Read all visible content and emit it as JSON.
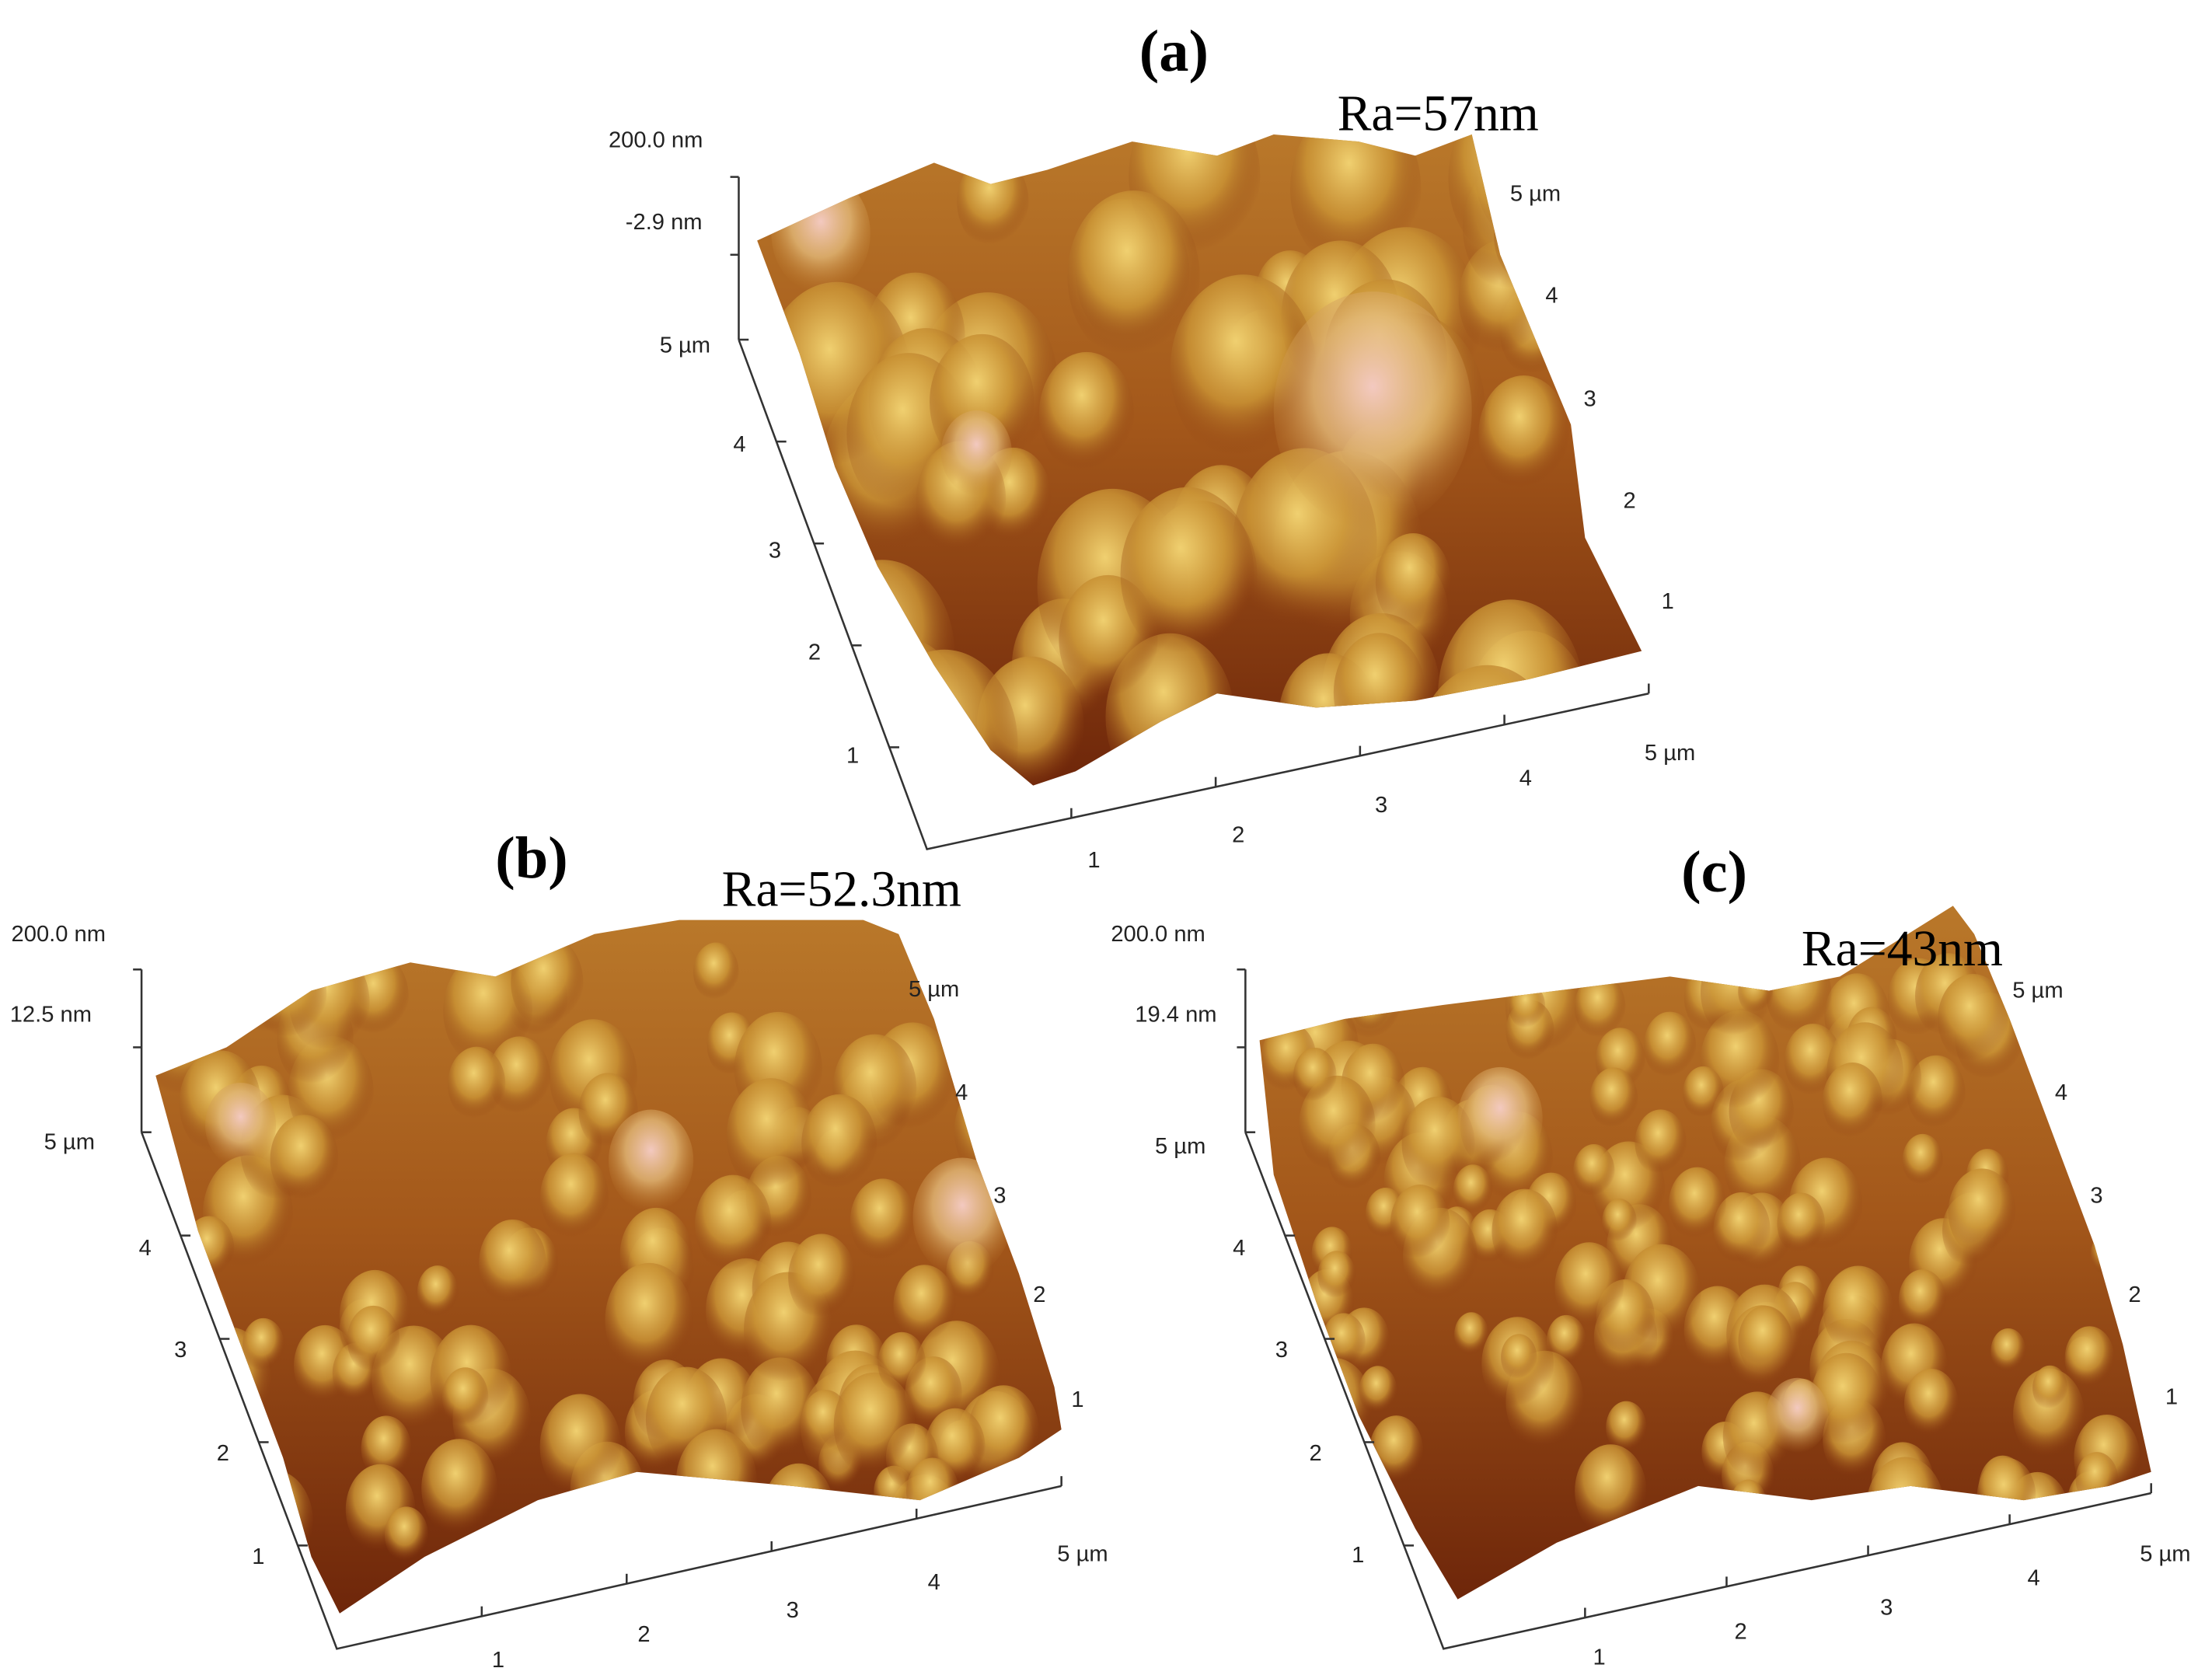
{
  "panels": [
    {
      "label": "(a)",
      "roughness": "Ra=57nm",
      "z_top": "200.0 nm",
      "z_level": "-2.9 nm",
      "left_ticks": [
        "5 µm",
        "4",
        "3",
        "2",
        "1"
      ],
      "bottom_ticks": [
        "1",
        "2",
        "3",
        "4",
        "5 µm"
      ],
      "right_ticks": [
        "5 µm",
        "4",
        "3",
        "2",
        "1"
      ]
    },
    {
      "label": "(b)",
      "roughness": "Ra=52.3nm",
      "z_top": "200.0 nm",
      "z_level": "12.5 nm",
      "left_ticks": [
        "5 µm",
        "4",
        "3",
        "2",
        "1"
      ],
      "bottom_ticks": [
        "1",
        "2",
        "3",
        "4",
        "5 µm"
      ],
      "right_ticks": [
        "5 µm",
        "4",
        "3",
        "2",
        "1"
      ]
    },
    {
      "label": "(c)",
      "roughness": "Ra=43nm",
      "z_top": "200.0 nm",
      "z_level": "19.4 nm",
      "left_ticks": [
        "5 µm",
        "4",
        "3",
        "2",
        "1"
      ],
      "bottom_ticks": [
        "1",
        "2",
        "3",
        "4",
        "5 µm"
      ],
      "right_ticks": [
        "5 µm",
        "4",
        "3",
        "2",
        "1"
      ]
    }
  ]
}
